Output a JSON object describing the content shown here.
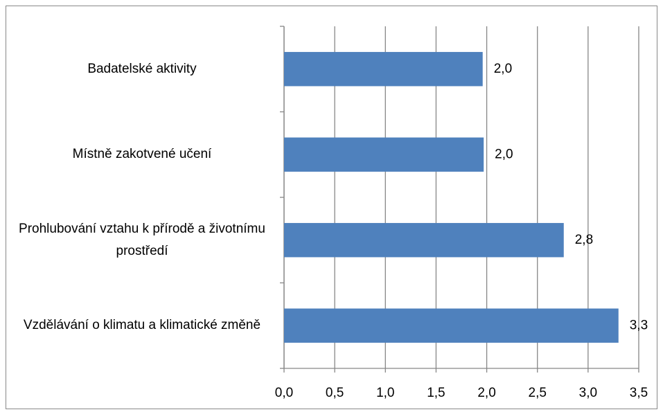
{
  "chart_data": {
    "type": "bar",
    "orientation": "horizontal",
    "categories": [
      "Badatelské aktivity",
      "Místně zakotvené učení",
      "Prohlubování vztahu k přírodě a životnímu prostředí",
      "Vzdělávání o klimatu a klimatické změně"
    ],
    "values": [
      1.96,
      1.97,
      2.76,
      3.3
    ],
    "value_labels": [
      "2,0",
      "2,0",
      "2,8",
      "3,3"
    ],
    "color": "#4f81bd",
    "xlim": [
      0,
      3.5
    ],
    "xticks": [
      {
        "value": 0,
        "label": "0,0"
      },
      {
        "value": 0.5,
        "label": "0,5"
      },
      {
        "value": 1,
        "label": "1,0"
      },
      {
        "value": 1.5,
        "label": "1,5"
      },
      {
        "value": 2,
        "label": "2,0"
      },
      {
        "value": 2.5,
        "label": "2,5"
      },
      {
        "value": 3,
        "label": "3,0"
      },
      {
        "value": 3.5,
        "label": "3,5"
      }
    ],
    "grid": true
  }
}
